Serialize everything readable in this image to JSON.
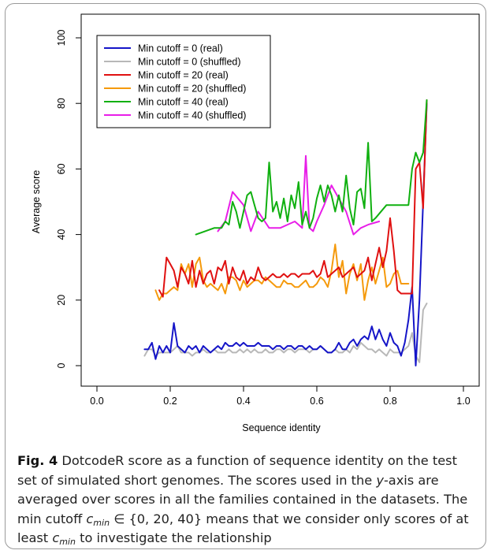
{
  "chart_data": {
    "type": "line",
    "xlabel": "Sequence identity",
    "ylabel": "Average score",
    "xlim": [
      0.0,
      1.0
    ],
    "ylim": [
      0,
      100
    ],
    "xticks": [
      "0.0",
      "0.2",
      "0.4",
      "0.6",
      "0.8",
      "1.0"
    ],
    "yticks": [
      "0",
      "20",
      "40",
      "60",
      "80",
      "100"
    ],
    "grid": false,
    "legend_position": "top-left",
    "series": [
      {
        "name": "Min cutoff = 0 (real)",
        "color": "#1515c8",
        "x": [
          0.13,
          0.14,
          0.15,
          0.16,
          0.17,
          0.18,
          0.19,
          0.2,
          0.21,
          0.22,
          0.23,
          0.24,
          0.25,
          0.26,
          0.27,
          0.28,
          0.29,
          0.3,
          0.31,
          0.32,
          0.33,
          0.34,
          0.35,
          0.36,
          0.37,
          0.38,
          0.39,
          0.4,
          0.41,
          0.42,
          0.43,
          0.44,
          0.45,
          0.46,
          0.47,
          0.48,
          0.49,
          0.5,
          0.51,
          0.52,
          0.53,
          0.54,
          0.55,
          0.56,
          0.57,
          0.58,
          0.59,
          0.6,
          0.61,
          0.62,
          0.63,
          0.64,
          0.65,
          0.66,
          0.67,
          0.68,
          0.69,
          0.7,
          0.71,
          0.72,
          0.73,
          0.74,
          0.75,
          0.76,
          0.77,
          0.78,
          0.79,
          0.8,
          0.81,
          0.82,
          0.83,
          0.84,
          0.85,
          0.86,
          0.87,
          0.88,
          0.89,
          0.9
        ],
        "y": [
          5,
          5,
          7,
          2,
          6,
          4,
          6,
          4,
          13,
          6,
          5,
          4,
          6,
          5,
          6,
          4,
          6,
          5,
          4,
          5,
          6,
          5,
          7,
          6,
          6,
          7,
          6,
          7,
          6,
          6,
          6,
          7,
          6,
          6,
          6,
          5,
          6,
          6,
          5,
          6,
          6,
          5,
          6,
          6,
          5,
          6,
          5,
          5,
          6,
          5,
          4,
          4,
          5,
          7,
          5,
          5,
          7,
          8,
          6,
          8,
          9,
          8,
          12,
          8,
          11,
          8,
          6,
          10,
          7,
          6,
          3,
          7,
          14,
          24,
          0,
          20,
          50,
          80
        ]
      },
      {
        "name": "Min cutoff = 0 (shuffled)",
        "color": "#b8b8b8",
        "x": [
          0.13,
          0.14,
          0.15,
          0.16,
          0.17,
          0.18,
          0.19,
          0.2,
          0.21,
          0.22,
          0.23,
          0.24,
          0.25,
          0.26,
          0.27,
          0.28,
          0.29,
          0.3,
          0.31,
          0.32,
          0.33,
          0.34,
          0.35,
          0.36,
          0.37,
          0.38,
          0.39,
          0.4,
          0.41,
          0.42,
          0.43,
          0.44,
          0.45,
          0.46,
          0.47,
          0.48,
          0.49,
          0.5,
          0.51,
          0.52,
          0.53,
          0.54,
          0.55,
          0.56,
          0.57,
          0.58,
          0.59,
          0.6,
          0.61,
          0.62,
          0.63,
          0.64,
          0.65,
          0.66,
          0.67,
          0.68,
          0.69,
          0.7,
          0.71,
          0.72,
          0.73,
          0.74,
          0.75,
          0.76,
          0.77,
          0.78,
          0.79,
          0.8,
          0.81,
          0.82,
          0.83,
          0.84,
          0.85,
          0.86,
          0.87,
          0.88,
          0.89,
          0.9
        ],
        "y": [
          3,
          5,
          5,
          3,
          4,
          4,
          4,
          4,
          5,
          6,
          4,
          4,
          4,
          3,
          4,
          4,
          5,
          4,
          4,
          5,
          4,
          4,
          4,
          5,
          4,
          4,
          5,
          4,
          5,
          4,
          5,
          4,
          4,
          5,
          4,
          4,
          5,
          5,
          4,
          5,
          5,
          4,
          5,
          5,
          5,
          4,
          5,
          5,
          6,
          5,
          4,
          4,
          5,
          4,
          4,
          5,
          4,
          6,
          5,
          7,
          6,
          5,
          5,
          4,
          5,
          4,
          3,
          5,
          4,
          4,
          4,
          5,
          6,
          10,
          3,
          1,
          17,
          19
        ]
      },
      {
        "name": "Min cutoff = 20 (real)",
        "color": "#e01010",
        "x": [
          0.17,
          0.18,
          0.19,
          0.2,
          0.21,
          0.22,
          0.23,
          0.24,
          0.25,
          0.26,
          0.27,
          0.28,
          0.29,
          0.3,
          0.31,
          0.32,
          0.33,
          0.34,
          0.35,
          0.36,
          0.37,
          0.38,
          0.39,
          0.4,
          0.41,
          0.42,
          0.43,
          0.44,
          0.45,
          0.46,
          0.47,
          0.48,
          0.49,
          0.5,
          0.51,
          0.52,
          0.53,
          0.54,
          0.55,
          0.56,
          0.57,
          0.58,
          0.59,
          0.6,
          0.61,
          0.62,
          0.63,
          0.64,
          0.65,
          0.66,
          0.67,
          0.68,
          0.69,
          0.7,
          0.71,
          0.72,
          0.73,
          0.74,
          0.75,
          0.76,
          0.77,
          0.78,
          0.79,
          0.8,
          0.81,
          0.82,
          0.83,
          0.84,
          0.85,
          0.86,
          0.87,
          0.88,
          0.89,
          0.9
        ],
        "y": [
          23,
          21,
          33,
          31,
          29,
          24,
          30,
          28,
          25,
          32,
          24,
          29,
          25,
          28,
          29,
          25,
          30,
          29,
          32,
          25,
          30,
          27,
          26,
          29,
          25,
          27,
          26,
          30,
          27,
          26,
          27,
          28,
          27,
          27,
          28,
          27,
          28,
          28,
          27,
          28,
          28,
          28,
          29,
          27,
          28,
          32,
          27,
          28,
          29,
          30,
          27,
          28,
          29,
          30,
          27,
          28,
          29,
          33,
          26,
          31,
          36,
          30,
          35,
          45,
          35,
          23,
          22,
          22,
          22,
          22,
          60,
          62,
          48,
          81
        ]
      },
      {
        "name": "Min cutoff = 20 (shuffled)",
        "color": "#f59a0c",
        "x": [
          0.16,
          0.17,
          0.18,
          0.19,
          0.2,
          0.21,
          0.22,
          0.23,
          0.24,
          0.25,
          0.26,
          0.27,
          0.28,
          0.29,
          0.3,
          0.31,
          0.32,
          0.33,
          0.34,
          0.35,
          0.36,
          0.37,
          0.38,
          0.39,
          0.4,
          0.41,
          0.42,
          0.43,
          0.44,
          0.45,
          0.46,
          0.47,
          0.48,
          0.49,
          0.5,
          0.51,
          0.52,
          0.53,
          0.54,
          0.55,
          0.56,
          0.57,
          0.58,
          0.59,
          0.6,
          0.61,
          0.62,
          0.63,
          0.64,
          0.65,
          0.66,
          0.67,
          0.68,
          0.69,
          0.7,
          0.71,
          0.72,
          0.73,
          0.74,
          0.75,
          0.76,
          0.77,
          0.78,
          0.79,
          0.8,
          0.81,
          0.82,
          0.83,
          0.84,
          0.85
        ],
        "y": [
          23,
          20,
          22,
          22,
          23,
          24,
          23,
          31,
          28,
          31,
          24,
          31,
          33,
          26,
          24,
          25,
          24,
          23,
          25,
          22,
          27,
          27,
          26,
          23,
          26,
          24,
          25,
          26,
          26,
          25,
          27,
          26,
          25,
          24,
          24,
          26,
          25,
          25,
          24,
          24,
          25,
          26,
          24,
          24,
          25,
          27,
          26,
          24,
          29,
          37,
          27,
          32,
          22,
          28,
          31,
          26,
          31,
          20,
          26,
          30,
          25,
          29,
          33,
          24,
          25,
          28,
          29,
          25,
          25,
          25
        ]
      },
      {
        "name": "Min cutoff = 40 (real)",
        "color": "#10b010",
        "x": [
          0.27,
          0.32,
          0.34,
          0.35,
          0.36,
          0.37,
          0.38,
          0.39,
          0.4,
          0.41,
          0.42,
          0.43,
          0.44,
          0.45,
          0.46,
          0.47,
          0.48,
          0.49,
          0.5,
          0.51,
          0.52,
          0.53,
          0.54,
          0.55,
          0.56,
          0.57,
          0.58,
          0.59,
          0.6,
          0.61,
          0.62,
          0.63,
          0.64,
          0.65,
          0.66,
          0.67,
          0.68,
          0.69,
          0.7,
          0.71,
          0.72,
          0.73,
          0.74,
          0.75,
          0.76,
          0.79,
          0.82,
          0.85,
          0.86,
          0.87,
          0.88,
          0.89,
          0.9
        ],
        "y": [
          40,
          42,
          42,
          44,
          43,
          50,
          47,
          42,
          47,
          52,
          53,
          49,
          45,
          44,
          45,
          62,
          47,
          50,
          45,
          51,
          44,
          52,
          48,
          56,
          43,
          47,
          42,
          45,
          51,
          55,
          50,
          55,
          52,
          47,
          52,
          47,
          58,
          48,
          43,
          53,
          54,
          48,
          68,
          44,
          45,
          49,
          49,
          49,
          60,
          65,
          62,
          65,
          81
        ]
      },
      {
        "name": "Min cutoff = 40 (shuffled)",
        "color": "#e81ee8",
        "x": [
          0.33,
          0.35,
          0.37,
          0.4,
          0.42,
          0.44,
          0.47,
          0.5,
          0.52,
          0.54,
          0.55,
          0.56,
          0.57,
          0.58,
          0.59,
          0.6,
          0.62,
          0.64,
          0.66,
          0.68,
          0.7,
          0.72,
          0.74,
          0.77
        ],
        "y": [
          41,
          44,
          53,
          49,
          41,
          47,
          42,
          42,
          43,
          44,
          43,
          42,
          64,
          42,
          41,
          44,
          49,
          55,
          51,
          47,
          40,
          42,
          43,
          44
        ]
      }
    ]
  },
  "caption": {
    "label": "Fig. 4",
    "text_1": " DotcodeR score as a function of sequence identity on the test set of simulated short genomes. The scores used in the ",
    "axis_var": "y",
    "text_2": "-axis are averaged over scores in all the families contained in the datasets. The min cutoff ",
    "cmin_main": "c",
    "cmin_sub": "min",
    "text_3": " ∈ {0, 20, 40} means that we consider only scores of at least ",
    "cmin_main_2": "c",
    "cmin_sub_2": "min",
    "text_4": " to investigate the relationship"
  }
}
